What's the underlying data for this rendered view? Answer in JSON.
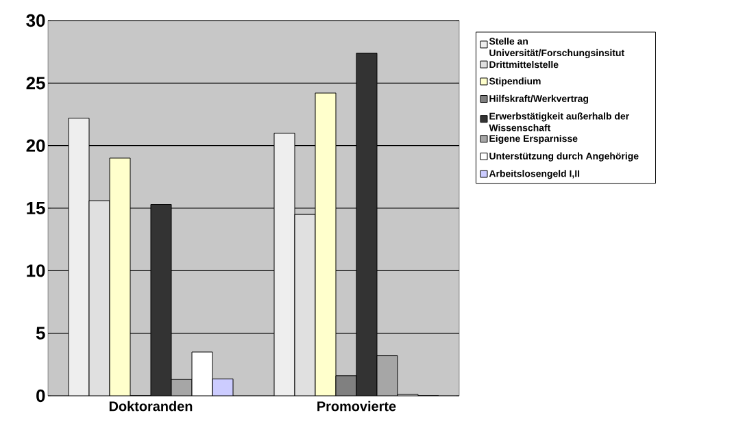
{
  "chart_data": {
    "type": "bar",
    "categories": [
      "Doktoranden",
      "Promovierte"
    ],
    "series": [
      {
        "name": "Stelle an Universität/Forschungsinsitut",
        "color": "#eeeeee",
        "values": [
          22.2,
          21.0
        ]
      },
      {
        "name": "Drittmittelstelle",
        "color": "#e0e0e0",
        "values": [
          15.6,
          14.5
        ]
      },
      {
        "name": "Stipendium",
        "color": "#ffffcc",
        "values": [
          19.0,
          24.2
        ]
      },
      {
        "name": "Hilfskraft/Werkvertrag",
        "color": "#808080",
        "values": [
          0,
          1.6
        ]
      },
      {
        "name": "Erwerbstätigkeit außerhalb der Wissenschaft",
        "color": "#333333",
        "values": [
          15.3,
          27.4
        ]
      },
      {
        "name": "Eigene Ersparnisse",
        "color": "#a6a6a6",
        "values": [
          1.3,
          3.2
        ]
      },
      {
        "name": "Unterstützung durch Angehörige",
        "color": "#ffffff",
        "values": [
          3.5,
          0.1
        ]
      },
      {
        "name": "Arbeitslosengeld I,II",
        "color": "#ccccff",
        "values": [
          1.35,
          0
        ]
      }
    ],
    "ylim": [
      0,
      30
    ],
    "yticks": [
      0,
      5,
      10,
      15,
      20,
      25,
      30
    ],
    "grid": "y",
    "legend": "right"
  }
}
